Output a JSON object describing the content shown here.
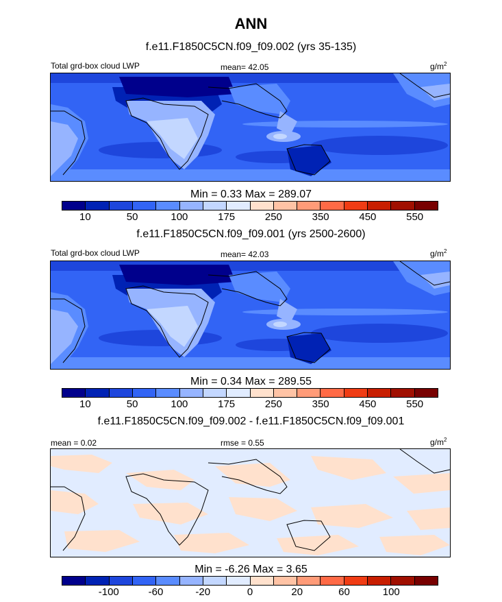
{
  "figure": {
    "title": "ANN"
  },
  "panels": [
    {
      "case_title": "f.e11.F1850C5CN.f09_f09.002 (yrs 35-135)",
      "left_label": "Total grd-box cloud LWP",
      "center_label": "mean=  42.05",
      "units": "g/m",
      "units_sup": "2",
      "minmax": "Min =   0.33 Max = 289.07",
      "colorbar": {
        "colors": [
          "#00008c",
          "#0022b4",
          "#1e46dc",
          "#3264f5",
          "#5a8cff",
          "#96b4ff",
          "#c3d7ff",
          "#e1ecff",
          "#ffe1cd",
          "#ffc3a5",
          "#ff9b78",
          "#ff6a46",
          "#f03c14",
          "#c81e00",
          "#a00f00",
          "#780000"
        ],
        "labels": [
          "10",
          "50",
          "100",
          "175",
          "250",
          "350",
          "450",
          "550"
        ]
      }
    },
    {
      "case_title": "f.e11.F1850C5CN.f09_f09.001 (yrs 2500-2600)",
      "left_label": "Total grd-box cloud LWP",
      "center_label": "mean=  42.03",
      "units": "g/m",
      "units_sup": "2",
      "minmax": "Min =   0.34 Max = 289.55",
      "colorbar": {
        "colors": [
          "#00008c",
          "#0022b4",
          "#1e46dc",
          "#3264f5",
          "#5a8cff",
          "#96b4ff",
          "#c3d7ff",
          "#e1ecff",
          "#ffe1cd",
          "#ffc3a5",
          "#ff9b78",
          "#ff6a46",
          "#f03c14",
          "#c81e00",
          "#a00f00",
          "#780000"
        ],
        "labels": [
          "10",
          "50",
          "100",
          "175",
          "250",
          "350",
          "450",
          "550"
        ]
      }
    },
    {
      "case_title": "f.e11.F1850C5CN.f09_f09.002 - f.e11.F1850C5CN.f09_f09.001",
      "left_label": "mean =   0.02",
      "center_label": "rmse =   0.55",
      "units": "g/m",
      "units_sup": "2",
      "minmax": "Min =  -6.26 Max =   3.65",
      "colorbar": {
        "colors": [
          "#00008c",
          "#0022b4",
          "#1e46dc",
          "#3264f5",
          "#5a8cff",
          "#96b4ff",
          "#c3d7ff",
          "#e1ecff",
          "#ffe1cd",
          "#ffc3a5",
          "#ff9b78",
          "#ff6a46",
          "#f03c14",
          "#c81e00",
          "#a00f00",
          "#780000"
        ],
        "labels": [
          "-100",
          "-60",
          "-20",
          "0",
          "20",
          "60",
          "100"
        ]
      }
    }
  ],
  "chart_data": [
    {
      "type": "heatmap",
      "title": "f.e11.F1850C5CN.f09_f09.002 (yrs 35-135)",
      "variable": "Total grd-box cloud LWP",
      "units": "g/m2",
      "mean": 42.05,
      "min": 0.33,
      "max": 289.07,
      "levels": [
        10,
        50,
        100,
        175,
        250,
        350,
        450,
        550
      ]
    },
    {
      "type": "heatmap",
      "title": "f.e11.F1850C5CN.f09_f09.001 (yrs 2500-2600)",
      "variable": "Total grd-box cloud LWP",
      "units": "g/m2",
      "mean": 42.03,
      "min": 0.34,
      "max": 289.55,
      "levels": [
        10,
        50,
        100,
        175,
        250,
        350,
        450,
        550
      ]
    },
    {
      "type": "heatmap",
      "title": "f.e11.F1850C5CN.f09_f09.002 - f.e11.F1850C5CN.f09_f09.001",
      "units": "g/m2",
      "mean": 0.02,
      "rmse": 0.55,
      "min": -6.26,
      "max": 3.65,
      "levels": [
        -100,
        -60,
        -20,
        0,
        20,
        60,
        100
      ]
    }
  ]
}
